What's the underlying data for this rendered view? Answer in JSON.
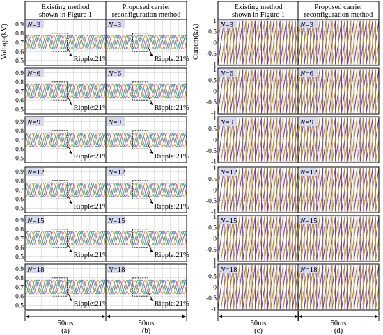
{
  "columns": [
    {
      "header_lines": [
        "Existing method",
        "shown in Figure 1"
      ],
      "label": "(a)",
      "kind": "voltage"
    },
    {
      "header_lines": [
        "Proposed carrier",
        "reconfiguration method"
      ],
      "label": "(b)",
      "kind": "voltage"
    },
    {
      "header_lines": [
        "Existing method",
        "shown in Figure 1"
      ],
      "label": "(c)",
      "kind": "current"
    },
    {
      "header_lines": [
        "Proposed carrier",
        "reconfiguration method"
      ],
      "label": "(d)",
      "kind": "current"
    }
  ],
  "rows_n": [
    "3",
    "6",
    "9",
    "12",
    "15",
    "18"
  ],
  "n_prefix": "N",
  "ripple_text": "Ripple:21%",
  "time_span_label": "50ms",
  "voltage_axis": {
    "ylabel": "Voltage(kV)",
    "ticks": [
      "0.9",
      "0.8",
      "0.7",
      "0.6",
      "0.5"
    ],
    "ylim": [
      0.45,
      0.95
    ]
  },
  "current_axis": {
    "ylabel": "Current(kA)",
    "ticks": [
      "1",
      "0.5",
      "0",
      "-0.5",
      "-1"
    ],
    "ylim": [
      -1.05,
      1.05
    ]
  },
  "chart_data": [
    {
      "type": "line",
      "panel": "voltage",
      "ylabel": "Voltage(kV)",
      "ylim": [
        0.45,
        0.95
      ],
      "x_span_ms": 50,
      "series": [
        {
          "color": "#c040c0",
          "mean": 0.7,
          "amplitude": 0.075,
          "phase_deg": 0
        },
        {
          "color": "#40b040",
          "mean": 0.7,
          "amplitude": 0.075,
          "phase_deg": 120
        },
        {
          "color": "#e09040",
          "mean": 0.7,
          "amplitude": 0.075,
          "phase_deg": 240
        },
        {
          "color": "#40a0d0",
          "mean": 0.7,
          "amplitude": 0.075,
          "phase_deg": 60
        }
      ],
      "annotation": "Ripple:21%",
      "grid": true
    },
    {
      "type": "line",
      "panel": "current",
      "ylabel": "Current(kA)",
      "ylim": [
        -1.05,
        1.05
      ],
      "x_span_ms": 50,
      "series": [
        {
          "color": "#7a3a9a",
          "shape": "sawtooth",
          "min": -1,
          "max": 1
        },
        {
          "color": "#b08a20",
          "shape": "sawtooth",
          "min": -1,
          "max": 1
        }
      ],
      "grid": true
    }
  ],
  "colors": {
    "panel_border": "#000000",
    "grid": "#bbbbbb",
    "n_label_bg": "#d7d7ee",
    "header_bg": "#ffffff"
  }
}
